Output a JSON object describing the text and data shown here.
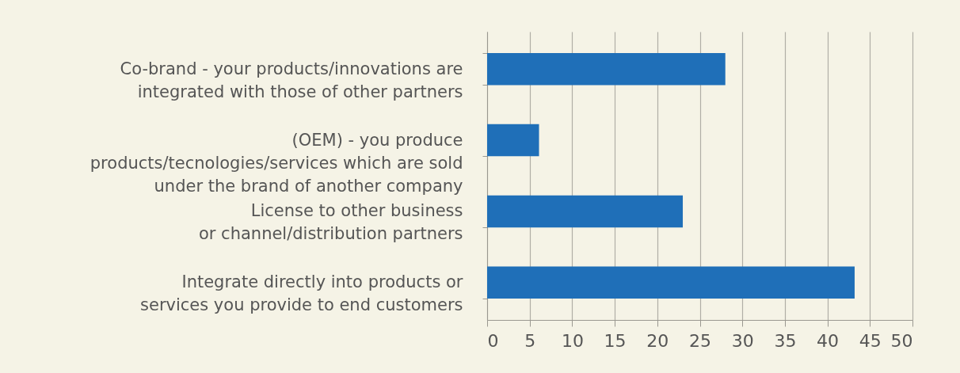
{
  "chart_data": {
    "type": "bar",
    "orientation": "horizontal",
    "categories": [
      "Co-brand - your products/innovations are\nintegrated with those of other partners",
      "(OEM) - you produce\nproducts/tecnologies/services which are sold\nunder the brand of another company",
      "License to other business\nor channel/distribution partners",
      "Integrate directly into products or\nservices you provide to end customers"
    ],
    "values": [
      28.0,
      6.1,
      23.0,
      43.2
    ],
    "color": "#1f6fb8",
    "xlim": [
      0,
      50
    ],
    "xticks": [
      0,
      5,
      10,
      15,
      20,
      25,
      30,
      35,
      40,
      45,
      50
    ],
    "grid": "x"
  }
}
